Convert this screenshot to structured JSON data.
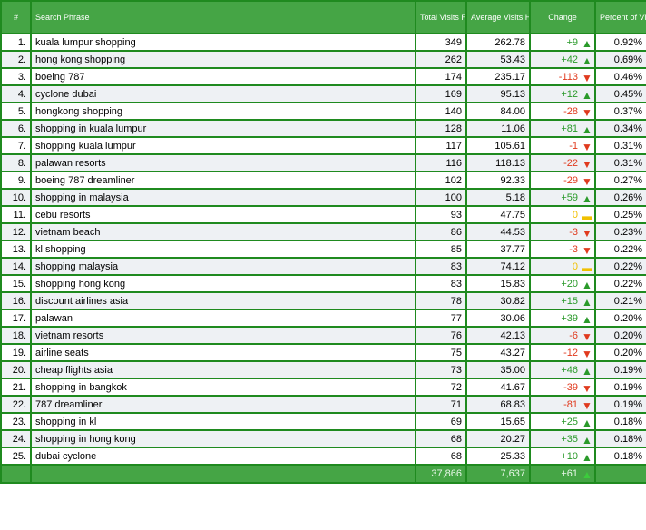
{
  "headers": {
    "num": "#",
    "phrase": "Search Phrase",
    "total": "Total Visits Referred",
    "avg": "Average Visits Historically",
    "change": "Change",
    "percent": "Percent of Visits"
  },
  "rows": [
    [
      "1.",
      "kuala lumpur shopping",
      "349",
      "262.78",
      "+9",
      "up",
      "0.92%"
    ],
    [
      "2.",
      "hong kong shopping",
      "262",
      "53.43",
      "+42",
      "up",
      "0.69%"
    ],
    [
      "3.",
      "boeing 787",
      "174",
      "235.17",
      "-113",
      "down",
      "0.46%"
    ],
    [
      "4.",
      "cyclone dubai",
      "169",
      "95.13",
      "+12",
      "up",
      "0.45%"
    ],
    [
      "5.",
      "hongkong shopping",
      "140",
      "84.00",
      "-28",
      "down",
      "0.37%"
    ],
    [
      "6.",
      "shopping in kuala lumpur",
      "128",
      "11.06",
      "+81",
      "up",
      "0.34%"
    ],
    [
      "7.",
      "shopping kuala lumpur",
      "117",
      "105.61",
      "-1",
      "down",
      "0.31%"
    ],
    [
      "8.",
      "palawan resorts",
      "116",
      "118.13",
      "-22",
      "down",
      "0.31%"
    ],
    [
      "9.",
      "boeing 787 dreamliner",
      "102",
      "92.33",
      "-29",
      "down",
      "0.27%"
    ],
    [
      "10.",
      "shopping in malaysia",
      "100",
      "5.18",
      "+59",
      "up",
      "0.26%"
    ],
    [
      "11.",
      "cebu resorts",
      "93",
      "47.75",
      "0",
      "flat",
      "0.25%"
    ],
    [
      "12.",
      "vietnam beach",
      "86",
      "44.53",
      "-3",
      "down",
      "0.23%"
    ],
    [
      "13.",
      "kl shopping",
      "85",
      "37.77",
      "-3",
      "down",
      "0.22%"
    ],
    [
      "14.",
      "shopping malaysia",
      "83",
      "74.12",
      "0",
      "flat",
      "0.22%"
    ],
    [
      "15.",
      "shopping hong kong",
      "83",
      "15.83",
      "+20",
      "up",
      "0.22%"
    ],
    [
      "16.",
      "discount airlines asia",
      "78",
      "30.82",
      "+15",
      "up",
      "0.21%"
    ],
    [
      "17.",
      "palawan",
      "77",
      "30.06",
      "+39",
      "up",
      "0.20%"
    ],
    [
      "18.",
      "vietnam resorts",
      "76",
      "42.13",
      "-6",
      "down",
      "0.20%"
    ],
    [
      "19.",
      "airline seats",
      "75",
      "43.27",
      "-12",
      "down",
      "0.20%"
    ],
    [
      "20.",
      "cheap flights asia",
      "73",
      "35.00",
      "+46",
      "up",
      "0.19%"
    ],
    [
      "21.",
      "shopping in bangkok",
      "72",
      "41.67",
      "-39",
      "down",
      "0.19%"
    ],
    [
      "22.",
      "787 dreamliner",
      "71",
      "68.83",
      "-81",
      "down",
      "0.19%"
    ],
    [
      "23.",
      "shopping in kl",
      "69",
      "15.65",
      "+25",
      "up",
      "0.18%"
    ],
    [
      "24.",
      "shopping in hong kong",
      "68",
      "20.27",
      "+35",
      "up",
      "0.18%"
    ],
    [
      "25.",
      "dubai cyclone",
      "68",
      "25.33",
      "+10",
      "up",
      "0.18%"
    ]
  ],
  "footer": {
    "total": "37,866",
    "avg": "7,637",
    "change": "+61",
    "direction": "up"
  },
  "colors": {
    "header": "#45a545",
    "border": "#1f8a1f",
    "up": "#2a9a2a",
    "down": "#e03a1e",
    "flat": "#f0c000"
  }
}
